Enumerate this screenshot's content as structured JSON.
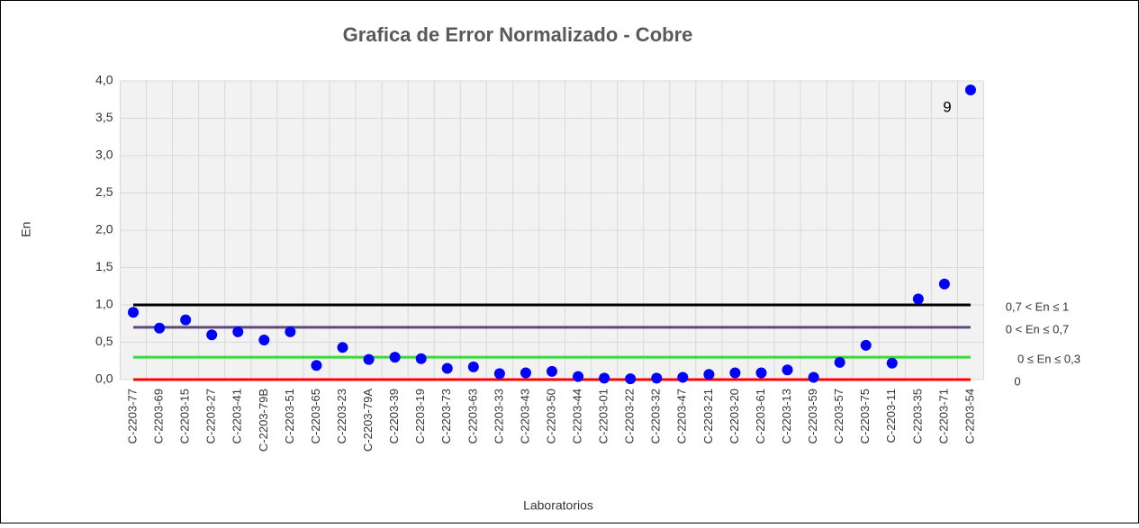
{
  "chart_data": {
    "type": "scatter",
    "title": "Grafica de Error Normalizado - Cobre",
    "xlabel": "Laboratorios",
    "ylabel": "En",
    "categories": [
      "C-2203-77",
      "C-2203-69",
      "C-2203-15",
      "C-2203-27",
      "C-2203-41",
      "C-2203-79B",
      "C-2203-51",
      "C-2203-65",
      "C-2203-23",
      "C-2203-79A",
      "C-2203-39",
      "C-2203-19",
      "C-2203-73",
      "C-2203-63",
      "C-2203-33",
      "C-2203-43",
      "C-2203-50",
      "C-2203-44",
      "C-2203-01",
      "C-2203-22",
      "C-2203-32",
      "C-2203-47",
      "C-2203-21",
      "C-2203-20",
      "C-2203-61",
      "C-2203-13",
      "C-2203-59",
      "C-2203-57",
      "C-2203-75",
      "C-2203-11",
      "C-2203-35",
      "C-2203-71",
      "C-2203-54"
    ],
    "values": [
      0.9,
      0.69,
      0.8,
      0.6,
      0.64,
      0.53,
      0.64,
      0.19,
      0.43,
      0.27,
      0.3,
      0.28,
      0.15,
      0.17,
      0.08,
      0.09,
      0.11,
      0.04,
      0.02,
      0.01,
      0.02,
      0.03,
      0.07,
      0.09,
      0.09,
      0.13,
      0.03,
      0.23,
      0.46,
      0.22,
      1.08,
      1.28,
      3.88
    ],
    "color": "#0000ff",
    "annotation": "9",
    "ylim": [
      0,
      4
    ],
    "yticks": [
      {
        "value": 0,
        "label": "0,0"
      },
      {
        "value": 0.5,
        "label": "0,5"
      },
      {
        "value": 1,
        "label": "1,0"
      },
      {
        "value": 1.5,
        "label": "1,5"
      },
      {
        "value": 2,
        "label": "2,0"
      },
      {
        "value": 2.5,
        "label": "2,5"
      },
      {
        "value": 3,
        "label": "3,0"
      },
      {
        "value": 3.5,
        "label": "3,5"
      },
      {
        "value": 4,
        "label": "4,0"
      }
    ],
    "reference_lines": [
      {
        "value": 1,
        "label": "0,7 < En ≤ 1",
        "color": "#000000"
      },
      {
        "value": 0.7,
        "label": "0 < En ≤ 0,7",
        "color": "#604a7b"
      },
      {
        "value": 0.3,
        "label": "0 ≤ En ≤ 0,3",
        "color": "#33dd33"
      },
      {
        "value": 0,
        "label": "0",
        "color": "#ff0000"
      }
    ],
    "grid": true
  }
}
